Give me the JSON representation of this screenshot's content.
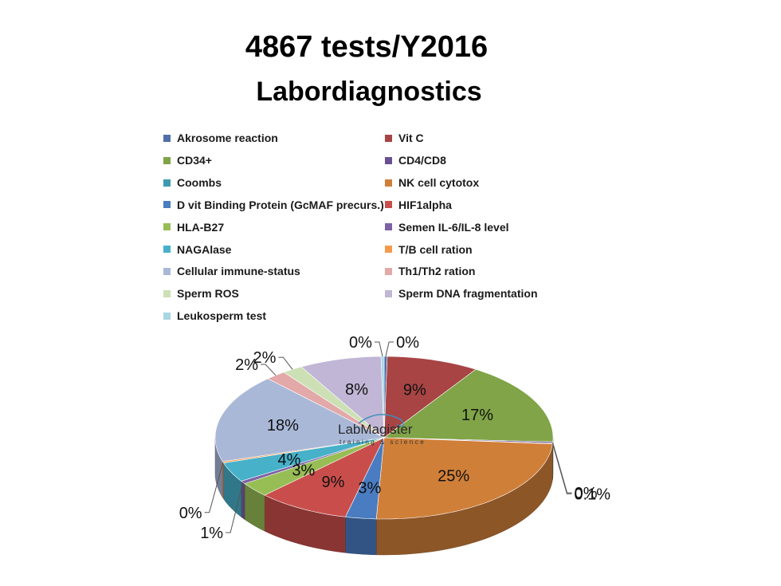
{
  "chart_data": {
    "type": "pie",
    "title": "4867 tests/Y2016",
    "subtitle": "Labordiagnostics",
    "slices": [
      {
        "name": "Akrosome reaction",
        "value": 0.3,
        "label": "0%",
        "color": "#4f6fa8"
      },
      {
        "name": "Vit C",
        "value": 9,
        "label": "9%",
        "color": "#a84444"
      },
      {
        "name": "CD34+",
        "value": 17,
        "label": "17%",
        "color": "#80a447"
      },
      {
        "name": "CD4/CD8",
        "value": 0.3,
        "label": "0%",
        "color": "#6a5092"
      },
      {
        "name": "Coombs",
        "value": 0.1,
        "label": "0.1%",
        "color": "#3d9bb0"
      },
      {
        "name": "NK cell cytotox",
        "value": 25,
        "label": "25%",
        "color": "#d07f39"
      },
      {
        "name": "D vit Binding Protein (GcMAF precurs.)",
        "value": 3,
        "label": "3%",
        "color": "#4a7cc2"
      },
      {
        "name": "HIF1alpha",
        "value": 9,
        "label": "9%",
        "color": "#c94e4b"
      },
      {
        "name": "HLA-B27",
        "value": 3,
        "label": "3%",
        "color": "#97bd55"
      },
      {
        "name": "Semen IL-6/IL-8 level",
        "value": 0.6,
        "label": "1%",
        "color": "#7d62a4"
      },
      {
        "name": "NAGAlase",
        "value": 4,
        "label": "4%",
        "color": "#46b1c9"
      },
      {
        "name": "T/B cell ration",
        "value": 0.3,
        "label": "0%",
        "color": "#f59a4c"
      },
      {
        "name": "Cellular immune-status",
        "value": 18,
        "label": "18%",
        "color": "#aab8d8"
      },
      {
        "name": "Th1/Th2 ration",
        "value": 2,
        "label": "2%",
        "color": "#e2a9a8"
      },
      {
        "name": "Sperm ROS",
        "value": 2,
        "label": "2%",
        "color": "#cde0b5"
      },
      {
        "name": "Sperm DNA fragmentation",
        "value": 8,
        "label": "8%",
        "color": "#c1b6d5"
      },
      {
        "name": "Leukosperm test",
        "value": 0.3,
        "label": "0%",
        "color": "#a9d6e4"
      }
    ],
    "legend_position": "top"
  },
  "logo": {
    "name": "LabMagister",
    "tagline": "training & science"
  }
}
